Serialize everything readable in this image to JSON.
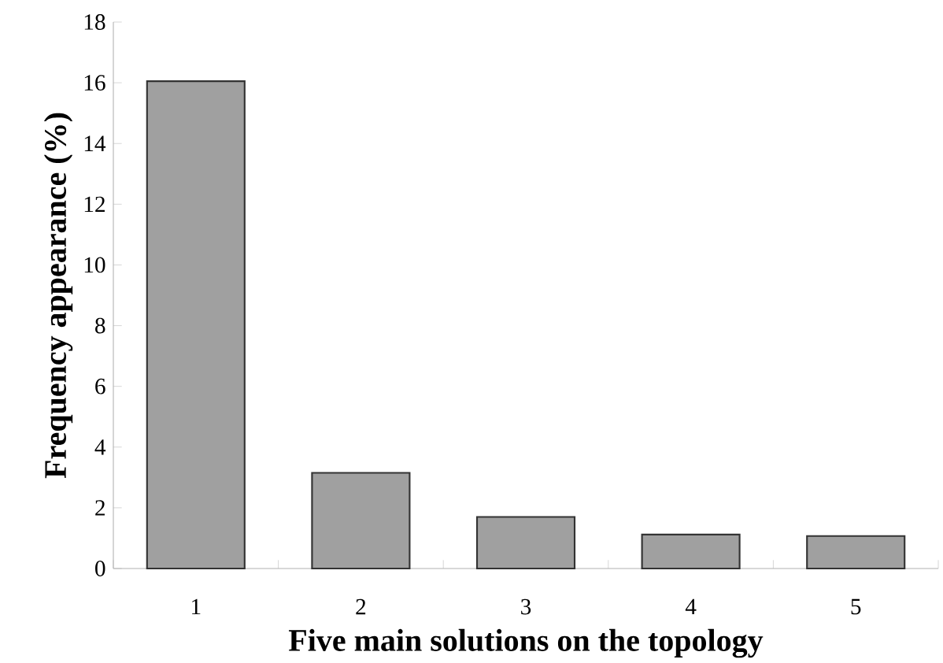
{
  "chart_data": {
    "type": "bar",
    "xlabel": "Five main solutions on the topology",
    "ylabel": "Frequency appearance (%)",
    "categories": [
      "1",
      "2",
      "3",
      "4",
      "5"
    ],
    "values": [
      16.05,
      3.15,
      1.7,
      1.12,
      1.07
    ],
    "color": "#a0a0a0",
    "ylim": [
      0,
      18
    ],
    "yticks": [
      0,
      2,
      4,
      6,
      8,
      10,
      12,
      14,
      16,
      18
    ],
    "grid": false
  }
}
